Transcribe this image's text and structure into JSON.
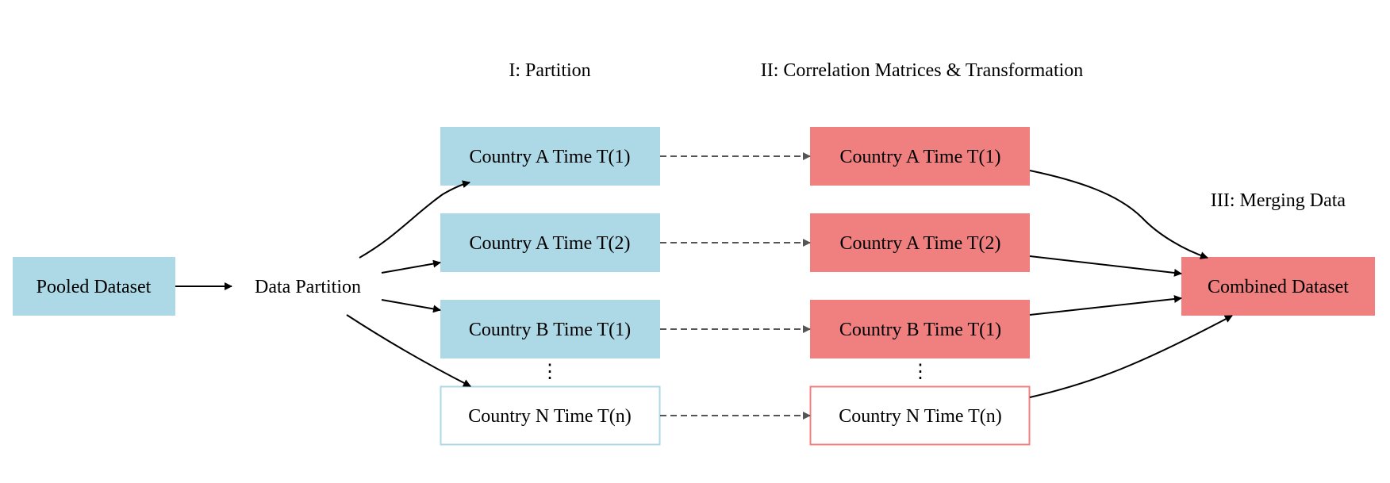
{
  "stages": {
    "partition": "I: Partition",
    "correlation": "II: Correlation Matrices & Transformation",
    "merging": "III: Merging Data"
  },
  "nodes": {
    "pooled": "Pooled Dataset",
    "data_partition": "Data Partition",
    "left_a1": "Country A Time T(1)",
    "left_a2": "Country A Time T(2)",
    "left_b1": "Country B Time T(1)",
    "left_nn": "Country N Time T(n)",
    "right_a1": "Country A Time T(1)",
    "right_a2": "Country A Time T(2)",
    "right_b1": "Country B Time T(1)",
    "right_nn": "Country N Time T(n)",
    "combined": "Combined Dataset"
  },
  "ellipsis": "⋮",
  "colors": {
    "blue": "#add8e6",
    "red": "#f08080",
    "arrow": "#000000",
    "dashed": "#555555"
  }
}
